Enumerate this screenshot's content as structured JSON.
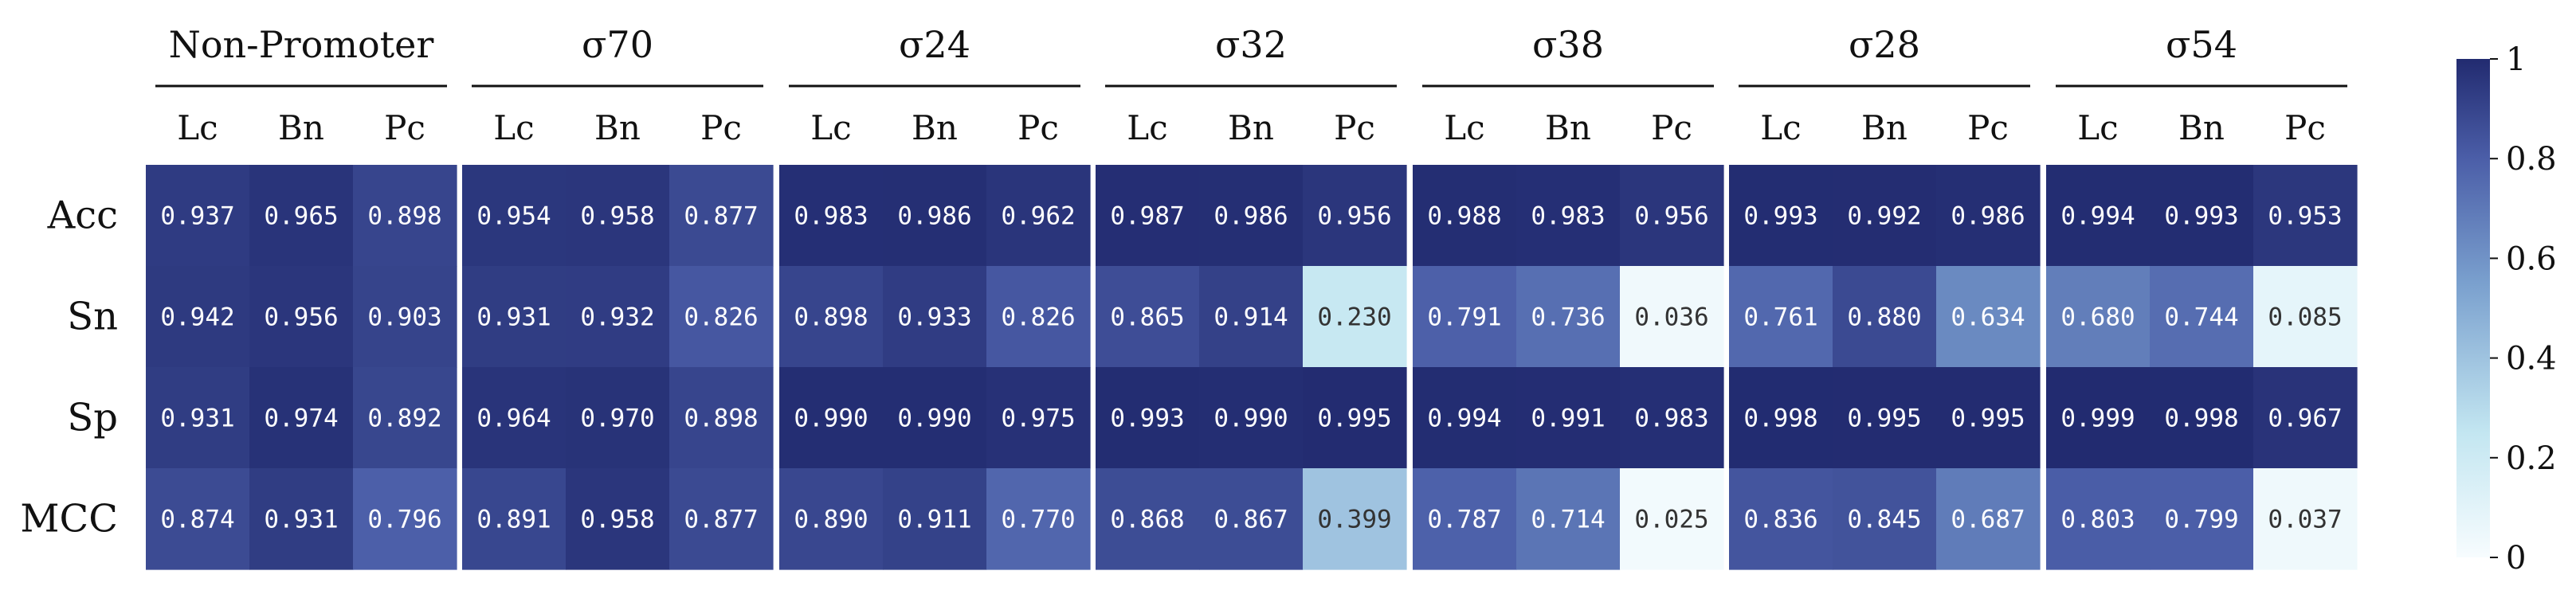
{
  "chart_data": {
    "type": "heatmap",
    "title": "",
    "row_labels": [
      "Acc",
      "Sn",
      "Sp",
      "MCC"
    ],
    "column_labels": [
      "Lc",
      "Bn",
      "Pc"
    ],
    "groups": [
      {
        "name": "Non-Promoter",
        "values": [
          [
            0.937,
            0.965,
            0.898
          ],
          [
            0.942,
            0.956,
            0.903
          ],
          [
            0.931,
            0.974,
            0.892
          ],
          [
            0.874,
            0.931,
            0.796
          ]
        ],
        "labels": [
          [
            "0.937",
            "0.965",
            "0.898"
          ],
          [
            "0.942",
            "0.956",
            "0.903"
          ],
          [
            "0.931",
            "0.974",
            "0.892"
          ],
          [
            "0.874",
            "0.931",
            "0.796"
          ]
        ]
      },
      {
        "name": "σ70",
        "values": [
          [
            0.954,
            0.958,
            0.877
          ],
          [
            0.931,
            0.932,
            0.826
          ],
          [
            0.964,
            0.97,
            0.898
          ],
          [
            0.891,
            0.958,
            0.877
          ]
        ],
        "labels": [
          [
            "0.954",
            "0.958",
            "0.877"
          ],
          [
            "0.931",
            "0.932",
            "0.826"
          ],
          [
            "0.964",
            "0.970",
            "0.898"
          ],
          [
            "0.891",
            "0.958",
            "0.877"
          ]
        ]
      },
      {
        "name": "σ24",
        "values": [
          [
            0.983,
            0.986,
            0.962
          ],
          [
            0.898,
            0.933,
            0.826
          ],
          [
            0.99,
            0.99,
            0.975
          ],
          [
            0.89,
            0.911,
            0.77
          ]
        ],
        "labels": [
          [
            "0.983",
            "0.986",
            "0.962"
          ],
          [
            "0.898",
            "0.933",
            "0.826"
          ],
          [
            "0.990",
            "0.990",
            "0.975"
          ],
          [
            "0.890",
            "0.911",
            "0.770"
          ]
        ]
      },
      {
        "name": "σ32",
        "values": [
          [
            0.987,
            0.986,
            0.956
          ],
          [
            0.865,
            0.914,
            0.23
          ],
          [
            0.993,
            0.99,
            0.995
          ],
          [
            0.868,
            0.867,
            0.399
          ]
        ],
        "labels": [
          [
            "0.987",
            "0.986",
            "0.956"
          ],
          [
            "0.865",
            "0.914",
            "0.230"
          ],
          [
            "0.993",
            "0.990",
            "0.995"
          ],
          [
            "0.868",
            "0.867",
            "0.399"
          ]
        ]
      },
      {
        "name": "σ38",
        "values": [
          [
            0.988,
            0.983,
            0.956
          ],
          [
            0.791,
            0.736,
            0.036
          ],
          [
            0.994,
            0.991,
            0.983
          ],
          [
            0.787,
            0.714,
            0.025
          ]
        ],
        "labels": [
          [
            "0.988",
            "0.983",
            "0.956"
          ],
          [
            "0.791",
            "0.736",
            "0.036"
          ],
          [
            "0.994",
            "0.991",
            "0.983"
          ],
          [
            "0.787",
            "0.714",
            "0.025"
          ]
        ]
      },
      {
        "name": "σ28",
        "values": [
          [
            0.993,
            0.992,
            0.986
          ],
          [
            0.761,
            0.88,
            0.634
          ],
          [
            0.998,
            0.995,
            0.995
          ],
          [
            0.836,
            0.845,
            0.687
          ]
        ],
        "labels": [
          [
            "0.993",
            "0.992",
            "0.986"
          ],
          [
            "0.761",
            "0.880",
            "0.634"
          ],
          [
            "0.998",
            "0.995",
            "0.995"
          ],
          [
            "0.836",
            "0.845",
            "0.687"
          ]
        ]
      },
      {
        "name": "σ54",
        "values": [
          [
            0.994,
            0.993,
            0.953
          ],
          [
            0.68,
            0.744,
            0.085
          ],
          [
            0.999,
            0.998,
            0.967
          ],
          [
            0.803,
            0.799,
            0.037
          ]
        ],
        "labels": [
          [
            "0.994",
            "0.993",
            "0.953"
          ],
          [
            "0.680",
            "0.744",
            "0.085"
          ],
          [
            "0.999",
            "0.998",
            "0.967"
          ],
          [
            "0.803",
            "0.799",
            "0.037"
          ]
        ]
      }
    ],
    "colorbar": {
      "range": [
        0,
        1
      ],
      "ticks": [
        0,
        0.2,
        0.4,
        0.6,
        0.8,
        1
      ],
      "tick_labels": [
        "0",
        "0.2",
        "0.4",
        "0.6",
        "0.8",
        "1"
      ],
      "colormap": [
        "#f7fcfe",
        "#c3e6f1",
        "#7aa0ce",
        "#4b5ea8",
        "#222b70"
      ]
    }
  }
}
